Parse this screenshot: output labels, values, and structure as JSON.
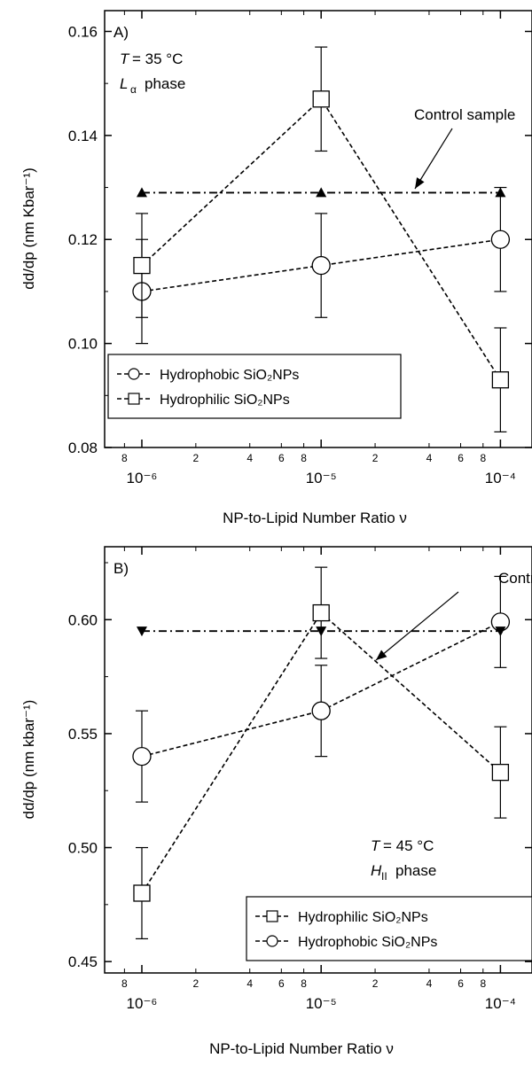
{
  "chart_data": [
    {
      "type": "scatter",
      "panel_label": "A)",
      "annotation": {
        "T": "T",
        "T_value": "= 35 °C",
        "phase_symbol": "L",
        "phase_sub": "α",
        "phase_word": "phase"
      },
      "xlabel": "NP-to-Lipid Number Ratio ν",
      "ylabel": "dd/dp (nm Kbar⁻¹)",
      "xscale": "log",
      "xlim": [
        6.2e-07,
        0.00015
      ],
      "ylim": [
        0.08,
        0.164
      ],
      "yticks": [
        "0.08",
        "0.10",
        "0.12",
        "0.14",
        "0.16"
      ],
      "xticks_major": [
        "10⁻⁶",
        "10⁻⁵",
        "10⁻⁴"
      ],
      "xticks_minor": [
        "8",
        "2",
        "4",
        "6",
        "8",
        "2",
        "4",
        "6",
        "8"
      ],
      "x": [
        1e-06,
        1e-05,
        0.0001
      ],
      "series": [
        {
          "name": "Hydrophobic SiO₂NPs",
          "marker": "circle",
          "values": [
            0.11,
            0.115,
            0.12
          ],
          "errors": [
            0.01,
            0.01,
            0.01
          ]
        },
        {
          "name": "Hydrophilic SiO₂NPs",
          "marker": "square",
          "values": [
            0.115,
            0.147,
            0.093
          ],
          "errors": [
            0.01,
            0.01,
            0.01
          ]
        },
        {
          "name": "Control sample",
          "marker": "triangle-up",
          "values": [
            0.129,
            0.129,
            0.129
          ]
        }
      ],
      "control_label": "Control sample",
      "legend": [
        "Hydrophobic SiO₂NPs",
        "Hydrophilic SiO₂NPs"
      ],
      "legend_position": "bottom-left"
    },
    {
      "type": "scatter",
      "panel_label": "B)",
      "annotation": {
        "T": "T",
        "T_value": "= 45 °C",
        "phase_symbol": "H",
        "phase_sub": "II",
        "phase_word": "phase"
      },
      "xlabel": "NP-to-Lipid Number Ratio ν",
      "ylabel": "dd/dp (nm kbar⁻¹)",
      "xscale": "log",
      "xlim": [
        6.2e-07,
        0.00015
      ],
      "ylim": [
        0.445,
        0.632
      ],
      "yticks": [
        "0.45",
        "0.50",
        "0.55",
        "0.60"
      ],
      "xticks_major": [
        "10⁻⁶",
        "10⁻⁵",
        "10⁻⁴"
      ],
      "xticks_minor": [
        "8",
        "2",
        "4",
        "6",
        "8",
        "2",
        "4",
        "6",
        "8"
      ],
      "x": [
        1e-06,
        1e-05,
        0.0001
      ],
      "series": [
        {
          "name": "Hydrophilic SiO₂NPs",
          "marker": "square",
          "values": [
            0.48,
            0.603,
            0.533
          ],
          "errors": [
            0.02,
            0.02,
            0.02
          ]
        },
        {
          "name": "Hydrophobic SiO₂NPs",
          "marker": "circle",
          "values": [
            0.54,
            0.56,
            0.599
          ],
          "errors": [
            0.02,
            0.02,
            0.02
          ]
        },
        {
          "name": "Control sample",
          "marker": "triangle-down",
          "values": [
            0.595,
            0.595,
            0.595
          ]
        }
      ],
      "control_label": "Control sample",
      "legend": [
        "Hydrophilic SiO₂NPs",
        "Hydrophobic SiO₂NPs"
      ],
      "legend_position": "bottom-right"
    }
  ]
}
